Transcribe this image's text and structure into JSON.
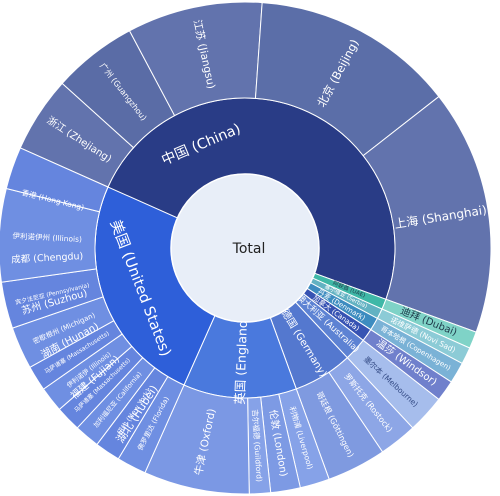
{
  "chart_data": {
    "type": "sunburst",
    "center_label": "Total",
    "rings": [
      [
        {
          "name": "中国 (China)",
          "start": 0,
          "end": 266,
          "color": "#293c86",
          "text_color": "#ffffff",
          "size": 1.35
        },
        {
          "name": "阿联酋 (UAE)",
          "start": 266,
          "end": 270,
          "color": "#3fb8a7",
          "text_color": "#1f3a4a",
          "size": 0.85
        },
        {
          "name": "塞尔维亚 (Serbia)",
          "start": 270,
          "end": 274,
          "color": "#62b2c2",
          "text_color": "#ffffff",
          "size": 0.75
        },
        {
          "name": "丹麦 (Denmark)",
          "start": 274,
          "end": 279,
          "color": "#3d8cc0",
          "text_color": "#ffffff",
          "size": 0.9
        },
        {
          "name": "加拿大 (Canada)",
          "start": 279,
          "end": 284,
          "color": "#3753b3",
          "text_color": "#ffffff",
          "size": 0.85
        },
        {
          "name": "澳大利亚 (Australia)",
          "start": 284,
          "end": 293,
          "color": "#5d82d3",
          "text_color": "#ffffff",
          "size": 0.85
        },
        {
          "name": "德国 (Germany)",
          "start": 293,
          "end": 316,
          "color": "#5478cf",
          "text_color": "#ffffff",
          "size": 1.0
        },
        {
          "name": "英国 (England)",
          "start": 316,
          "end": 360,
          "color": "#4a79dd",
          "text_color": "#ffffff",
          "size": 1.25
        },
        {
          "name": "美国 (United States)",
          "start": 360,
          "end": 450,
          "color": "#2e5fd9",
          "text_color": "#ffffff",
          "size": 1.4
        }
      ],
      [
        {
          "name": "湖北 (Hubei)",
          "start": 0,
          "end": 18,
          "color": "#6577b0",
          "text_color": "#ffffff",
          "size": 1.1
        },
        {
          "name": "福建 (Fujian)",
          "start": 18,
          "end": 32,
          "color": "#5c6ea8",
          "text_color": "#ffffff",
          "size": 1.0
        },
        {
          "name": "湖南 (Hunan)",
          "start": 32,
          "end": 44,
          "color": "#6273ad",
          "text_color": "#ffffff",
          "size": 1.0
        },
        {
          "name": "苏州 (Suzhou)",
          "start": 44,
          "end": 56,
          "color": "#5b6ea8",
          "text_color": "#ffffff",
          "size": 1.0
        },
        {
          "name": "成都 (Chengdu)",
          "start": 56,
          "end": 70,
          "color": "#6273ad",
          "text_color": "#ffffff",
          "size": 0.95
        },
        {
          "name": "香港 (Hong Kong)",
          "start": 70,
          "end": 90,
          "color": "#5a6ca6",
          "text_color": "#ffffff",
          "size": 0.75
        },
        {
          "name": "浙江 (Zhejiang)",
          "start": 90,
          "end": 108,
          "color": "#6273ad",
          "text_color": "#ffffff",
          "size": 1.0
        },
        {
          "name": "广州 (Guangzhou)",
          "start": 108,
          "end": 128,
          "color": "#5a6ca6",
          "text_color": "#ffffff",
          "size": 0.8
        },
        {
          "name": "江苏 (Jiangsu)",
          "start": 128,
          "end": 160,
          "color": "#6273ad",
          "text_color": "#ffffff",
          "size": 1.05
        },
        {
          "name": "北京 (Beijing)",
          "start": 160,
          "end": 208,
          "color": "#5b6ea8",
          "text_color": "#ffffff",
          "size": 1.15
        },
        {
          "name": "上海 (Shanghai)",
          "start": 208,
          "end": 266,
          "color": "#6273ad",
          "text_color": "#ffffff",
          "size": 1.2
        },
        {
          "name": "迪拜 (Dubai)",
          "start": 266,
          "end": 270,
          "color": "#7fd3c7",
          "text_color": "#1f3a4a",
          "size": 1.15
        },
        {
          "name": "诺维萨德 (Novi Sad)",
          "start": 270,
          "end": 274,
          "color": "#8ccbd6",
          "text_color": "#ffffff",
          "size": 0.75
        },
        {
          "name": "哥本哈根 (Copenhagen)",
          "start": 274,
          "end": 279,
          "color": "#7ab2d6",
          "text_color": "#ffffff",
          "size": 0.7
        },
        {
          "name": "温莎 (Windsor)",
          "start": 279,
          "end": 284,
          "color": "#7080cc",
          "text_color": "#ffffff",
          "size": 1.0
        },
        {
          "name": "墨尔本 (Melbourne)",
          "start": 284,
          "end": 293,
          "color": "#a6bdec",
          "text_color": "#334a85",
          "size": 0.75
        },
        {
          "name": "罗斯托克 (Rostock)",
          "start": 293,
          "end": 302,
          "color": "#8da6e6",
          "text_color": "#ffffff",
          "size": 0.8
        },
        {
          "name": "哥廷根 (Göttingen)",
          "start": 302,
          "end": 316,
          "color": "#7f9ae0",
          "text_color": "#ffffff",
          "size": 0.8
        },
        {
          "name": "利物浦 (Liverpool)",
          "start": 316,
          "end": 323,
          "color": "#86a2e8",
          "text_color": "#ffffff",
          "size": 0.75
        },
        {
          "name": "伦敦 (London)",
          "start": 323,
          "end": 330,
          "color": "#7d9ae4",
          "text_color": "#ffffff",
          "size": 1.0
        },
        {
          "name": "吉尔福德 (Guildford)",
          "start": 330,
          "end": 335,
          "color": "#86a2e8",
          "text_color": "#ffffff",
          "size": 0.75
        },
        {
          "name": "牛津 (Oxford)",
          "start": 335,
          "end": 360,
          "color": "#7b98e4",
          "text_color": "#ffffff",
          "size": 1.05
        },
        {
          "name": "佛罗里达 (Florida)",
          "start": 360,
          "end": 367,
          "color": "#6f8fe2",
          "text_color": "#ffffff",
          "size": 0.7
        },
        {
          "name": "纽约 (New York)",
          "start": 367,
          "end": 373,
          "color": "#6585de",
          "text_color": "#ffffff",
          "size": 0.7
        },
        {
          "name": "加利福尼亚 (California)",
          "start": 373,
          "end": 379,
          "color": "#6f8fe2",
          "text_color": "#ffffff",
          "size": 0.65
        },
        {
          "name": "马萨诸塞 (Massachusetts)",
          "start": 379,
          "end": 385,
          "color": "#6585de",
          "text_color": "#ffffff",
          "size": 0.6
        },
        {
          "name": "伊利诺伊 (Illinois)",
          "start": 385,
          "end": 391,
          "color": "#6f8fe2",
          "text_color": "#ffffff",
          "size": 0.65
        },
        {
          "name": "马萨诸塞 (Massachusetts)",
          "start": 391,
          "end": 397,
          "color": "#6585de",
          "text_color": "#ffffff",
          "size": 0.6
        },
        {
          "name": "密歇根州 (Michigan)",
          "start": 397,
          "end": 407,
          "color": "#6f8fe2",
          "text_color": "#ffffff",
          "size": 0.7
        },
        {
          "name": "宾夕法尼亚 (Pennsylvania)",
          "start": 407,
          "end": 418,
          "color": "#6585de",
          "text_color": "#ffffff",
          "size": 0.6
        },
        {
          "name": "伊利诺伊州 (Illinois)",
          "start": 418,
          "end": 440,
          "color": "#6f8fe2",
          "text_color": "#ffffff",
          "size": 0.75
        },
        {
          "name": "",
          "start": 440,
          "end": 450,
          "color": "#6585de",
          "text_color": "#ffffff",
          "size": 0.7
        }
      ]
    ]
  }
}
